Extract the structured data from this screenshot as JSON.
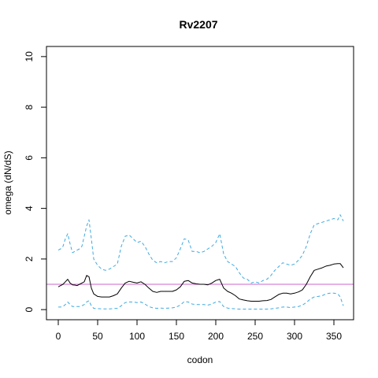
{
  "chart_data": {
    "type": "line",
    "title": "Rv2207",
    "xlabel": "codon",
    "ylabel": "omega (dN/dS)",
    "xlim": [
      -15,
      375
    ],
    "ylim": [
      -0.4,
      10.4
    ],
    "x_ticks": [
      0,
      50,
      100,
      150,
      200,
      250,
      300,
      350
    ],
    "y_ticks": [
      0,
      2,
      4,
      6,
      8,
      10
    ],
    "grid": false,
    "reference_line": {
      "y": 1,
      "color": "#cc66cc"
    },
    "series": [
      {
        "role": "upper-bound",
        "color": "#3fa9e0",
        "dash": "dashed",
        "x": [
          0,
          3,
          6,
          9,
          12,
          15,
          18,
          21,
          24,
          27,
          30,
          33,
          36,
          39,
          42,
          45,
          50,
          55,
          60,
          65,
          70,
          75,
          80,
          85,
          90,
          95,
          100,
          105,
          110,
          115,
          120,
          125,
          130,
          135,
          140,
          145,
          150,
          155,
          160,
          165,
          170,
          175,
          180,
          185,
          190,
          195,
          200,
          205,
          210,
          215,
          220,
          225,
          230,
          235,
          240,
          245,
          250,
          255,
          260,
          265,
          270,
          275,
          280,
          285,
          290,
          295,
          300,
          305,
          310,
          315,
          320,
          325,
          330,
          335,
          340,
          345,
          350,
          355,
          358,
          362
        ],
        "y": [
          2.35,
          2.4,
          2.5,
          2.8,
          3.0,
          2.6,
          2.25,
          2.3,
          2.35,
          2.4,
          2.5,
          2.9,
          3.3,
          3.55,
          2.8,
          2.0,
          1.75,
          1.6,
          1.55,
          1.6,
          1.7,
          1.8,
          2.5,
          2.9,
          2.95,
          2.8,
          2.65,
          2.7,
          2.5,
          2.2,
          1.95,
          1.85,
          1.9,
          1.85,
          1.9,
          1.9,
          2.05,
          2.4,
          2.8,
          2.75,
          2.3,
          2.3,
          2.25,
          2.3,
          2.4,
          2.5,
          2.65,
          3.0,
          2.2,
          1.9,
          1.8,
          1.7,
          1.45,
          1.25,
          1.2,
          1.05,
          1.1,
          1.05,
          1.15,
          1.2,
          1.35,
          1.55,
          1.7,
          1.85,
          1.8,
          1.75,
          1.8,
          1.95,
          2.15,
          2.5,
          3.0,
          3.35,
          3.4,
          3.45,
          3.5,
          3.55,
          3.6,
          3.55,
          3.75,
          3.5
        ]
      },
      {
        "role": "estimate",
        "color": "#000000",
        "dash": "solid",
        "x": [
          0,
          3,
          6,
          9,
          12,
          15,
          18,
          21,
          24,
          27,
          30,
          33,
          36,
          39,
          42,
          45,
          50,
          55,
          60,
          65,
          70,
          75,
          80,
          85,
          90,
          95,
          100,
          105,
          110,
          115,
          120,
          125,
          130,
          135,
          140,
          145,
          150,
          155,
          160,
          165,
          170,
          175,
          180,
          185,
          190,
          195,
          200,
          205,
          210,
          215,
          220,
          225,
          230,
          235,
          240,
          245,
          250,
          255,
          260,
          265,
          270,
          275,
          280,
          285,
          290,
          295,
          300,
          305,
          310,
          315,
          320,
          325,
          330,
          335,
          340,
          345,
          350,
          355,
          358,
          362
        ],
        "y": [
          0.9,
          0.95,
          1.0,
          1.1,
          1.2,
          1.05,
          0.98,
          0.97,
          0.95,
          1.0,
          1.05,
          1.1,
          1.35,
          1.3,
          0.85,
          0.62,
          0.52,
          0.5,
          0.5,
          0.5,
          0.55,
          0.62,
          0.85,
          1.05,
          1.12,
          1.08,
          1.05,
          1.1,
          1.0,
          0.85,
          0.72,
          0.68,
          0.72,
          0.72,
          0.72,
          0.72,
          0.78,
          0.9,
          1.12,
          1.15,
          1.05,
          1.02,
          1.0,
          1.0,
          0.98,
          1.05,
          1.15,
          1.2,
          0.85,
          0.72,
          0.65,
          0.55,
          0.42,
          0.38,
          0.35,
          0.33,
          0.33,
          0.33,
          0.35,
          0.36,
          0.4,
          0.5,
          0.6,
          0.65,
          0.65,
          0.62,
          0.65,
          0.7,
          0.78,
          1.0,
          1.3,
          1.55,
          1.6,
          1.65,
          1.72,
          1.75,
          1.8,
          1.82,
          1.82,
          1.65
        ]
      },
      {
        "role": "lower-bound",
        "color": "#3fa9e0",
        "dash": "dashed",
        "x": [
          0,
          3,
          6,
          9,
          12,
          15,
          18,
          21,
          24,
          27,
          30,
          33,
          36,
          39,
          42,
          45,
          50,
          55,
          60,
          65,
          70,
          75,
          80,
          85,
          90,
          95,
          100,
          105,
          110,
          115,
          120,
          125,
          130,
          135,
          140,
          145,
          150,
          155,
          160,
          165,
          170,
          175,
          180,
          185,
          190,
          195,
          200,
          205,
          210,
          215,
          220,
          225,
          230,
          235,
          240,
          245,
          250,
          255,
          260,
          265,
          270,
          275,
          280,
          285,
          290,
          295,
          300,
          305,
          310,
          315,
          320,
          325,
          330,
          335,
          340,
          345,
          350,
          355,
          358,
          362
        ],
        "y": [
          0.1,
          0.1,
          0.12,
          0.2,
          0.3,
          0.2,
          0.12,
          0.12,
          0.12,
          0.12,
          0.15,
          0.2,
          0.3,
          0.35,
          0.15,
          0.05,
          0.04,
          0.03,
          0.03,
          0.03,
          0.04,
          0.05,
          0.15,
          0.28,
          0.3,
          0.3,
          0.28,
          0.3,
          0.22,
          0.12,
          0.07,
          0.05,
          0.06,
          0.05,
          0.06,
          0.07,
          0.1,
          0.18,
          0.32,
          0.3,
          0.22,
          0.2,
          0.2,
          0.2,
          0.18,
          0.22,
          0.3,
          0.32,
          0.12,
          0.06,
          0.04,
          0.03,
          0.02,
          0.02,
          0.02,
          0.02,
          0.02,
          0.02,
          0.02,
          0.02,
          0.03,
          0.05,
          0.07,
          0.1,
          0.1,
          0.08,
          0.1,
          0.12,
          0.18,
          0.28,
          0.42,
          0.5,
          0.52,
          0.55,
          0.62,
          0.65,
          0.65,
          0.62,
          0.5,
          0.15
        ]
      }
    ]
  }
}
